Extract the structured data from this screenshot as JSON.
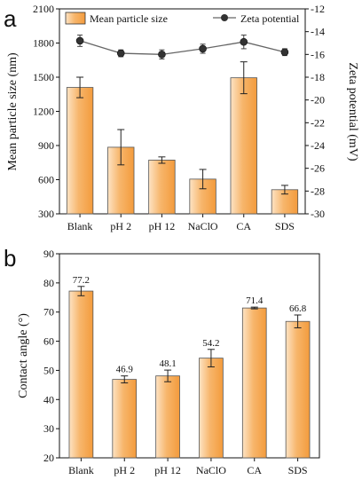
{
  "chart_data": [
    {
      "panel": "a",
      "type": "bar",
      "categories": [
        "Blank",
        "pH 2",
        "pH 12",
        "NaClO",
        "CA",
        "SDS"
      ],
      "series": [
        {
          "name": "Mean particle size",
          "axis": "left",
          "type": "bar",
          "values": [
            1410,
            885,
            772,
            605,
            1495,
            512
          ],
          "errors": [
            90,
            155,
            28,
            85,
            140,
            38
          ]
        },
        {
          "name": "Zeta potential",
          "axis": "right",
          "type": "line",
          "values": [
            -14.8,
            -15.9,
            -16.0,
            -15.5,
            -14.9,
            -15.8
          ],
          "errors": [
            0.5,
            0.3,
            0.4,
            0.4,
            0.6,
            0.3
          ]
        }
      ],
      "ylabel": "Mean particle size (nm)",
      "ylim": [
        300,
        2100
      ],
      "yticks": [
        300,
        600,
        900,
        1200,
        1500,
        1800,
        2100
      ],
      "y2label": "Zeta potential (mV)",
      "y2lim": [
        -30,
        -12
      ],
      "y2ticks": [
        -30,
        -28,
        -26,
        -24,
        -22,
        -20,
        -18,
        -16,
        -14,
        -12
      ],
      "legend": "top",
      "grid": false,
      "colors": {
        "bar_light": "#fde3c4",
        "bar_dark": "#f39b3c",
        "line": "#666666",
        "marker": "#333333"
      }
    },
    {
      "panel": "b",
      "type": "bar",
      "categories": [
        "Blank",
        "pH 2",
        "pH 12",
        "NaClO",
        "CA",
        "SDS"
      ],
      "series": [
        {
          "values": [
            77.2,
            46.9,
            48.1,
            54.2,
            71.4,
            66.8
          ],
          "errors": [
            1.6,
            1.2,
            2.0,
            3.0,
            0.3,
            2.2
          ],
          "labels": [
            "77.2",
            "46.9",
            "48.1",
            "54.2",
            "71.4",
            "66.8"
          ]
        }
      ],
      "ylabel": "Contact angle (°)",
      "ylim": [
        20,
        90
      ],
      "yticks": [
        20,
        30,
        40,
        50,
        60,
        70,
        80,
        90
      ],
      "grid": false,
      "colors": {
        "bar_light": "#fde3c4",
        "bar_dark": "#f39b3c"
      }
    }
  ]
}
